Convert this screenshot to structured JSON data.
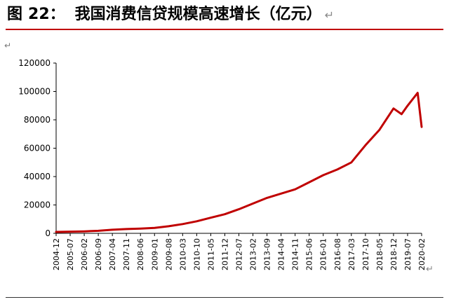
{
  "figure": {
    "label": "图",
    "number": "22：",
    "title_text": "我国消费信贷规模高速增长（亿元）",
    "return_mark": "↵",
    "rule_color": "#c00000"
  },
  "chart_data": {
    "type": "line",
    "title": "",
    "xlabel": "",
    "ylabel": "",
    "ylim": [
      0,
      120000
    ],
    "yticks": [
      0,
      20000,
      40000,
      60000,
      80000,
      100000,
      120000
    ],
    "y_tick_labels": [
      "0",
      "20000",
      "40000",
      "60000",
      "80000",
      "100000",
      "120000"
    ],
    "x_tick_labels": [
      "2004-12",
      "2005-07",
      "2006-02",
      "2006-09",
      "2007-04",
      "2007-11",
      "2008-06",
      "2009-01",
      "2009-08",
      "2010-03",
      "2010-10",
      "2011-05",
      "2011-12",
      "2012-07",
      "2013-02",
      "2013-09",
      "2014-04",
      "2014-11",
      "2015-06",
      "2016-01",
      "2016-08",
      "2017-03",
      "2017-10",
      "2018-05",
      "2018-12",
      "2019-07",
      "2020-02"
    ],
    "grid": false,
    "legend": "none",
    "series_color": "#c00000",
    "series": [
      {
        "x": [
          "2004-12",
          "2005-07",
          "2006-02",
          "2006-09",
          "2007-04",
          "2007-11",
          "2008-06",
          "2009-01",
          "2009-08",
          "2010-03",
          "2010-10",
          "2011-05",
          "2011-12",
          "2012-07",
          "2013-02",
          "2013-09",
          "2014-04",
          "2014-11",
          "2015-06",
          "2016-01",
          "2016-08",
          "2017-03",
          "2017-10",
          "2018-05",
          "2018-12",
          "2019-04",
          "2019-07",
          "2019-12",
          "2020-02"
        ],
        "values": [
          1000,
          1200,
          1400,
          1800,
          2500,
          3000,
          3300,
          3800,
          5000,
          6500,
          8500,
          11000,
          13500,
          17000,
          21000,
          25000,
          28000,
          31000,
          36000,
          41000,
          45000,
          50000,
          62000,
          73000,
          88000,
          84000,
          90000,
          99000,
          75000
        ]
      }
    ]
  }
}
